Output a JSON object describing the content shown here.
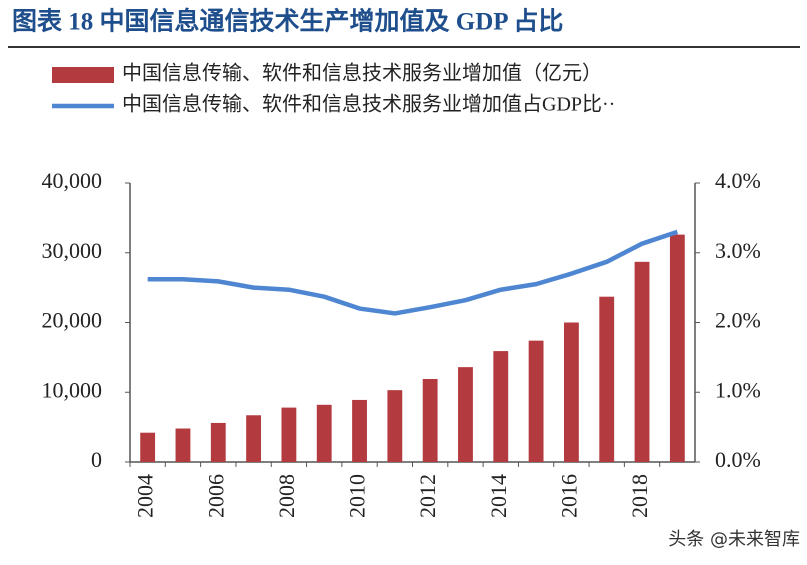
{
  "chart_data": {
    "type": "bar",
    "title": "图表 18   中国信息通信技术生产增加值及 GDP 占比",
    "watermark": "头条 @未来智库",
    "categories": [
      "2004",
      null,
      "2006",
      null,
      "2008",
      null,
      "2010",
      null,
      "2012",
      null,
      "2014",
      null,
      "2016",
      null,
      "2018",
      null
    ],
    "series": [
      {
        "name": "中国信息传输、软件和信息技术服务业增加值（亿元）",
        "type": "bar",
        "color": "#b33a3f",
        "values": [
          4200,
          4800,
          5600,
          6700,
          7800,
          8200,
          8900,
          10300,
          11900,
          13600,
          15900,
          17400,
          20000,
          23700,
          28700,
          32600
        ]
      },
      {
        "name": "中国信息传输、软件和信息技术服务业增加值占GDP比··",
        "type": "line",
        "axis": "y2",
        "color": "#4f86d2",
        "values": [
          2.62,
          2.62,
          2.59,
          2.5,
          2.47,
          2.37,
          2.2,
          2.13,
          2.22,
          2.32,
          2.47,
          2.55,
          2.7,
          2.87,
          3.13,
          3.3
        ]
      }
    ],
    "ylim": [
      0,
      40000
    ],
    "yticks": [
      0,
      {
        "value": 10000,
        "label": "10,000"
      },
      {
        "value": 20000,
        "label": "20,000"
      },
      {
        "value": 30000,
        "label": "30,000"
      },
      {
        "value": 40000,
        "label": "40,000"
      }
    ],
    "y2lim": [
      0,
      4
    ],
    "y2ticks": [
      {
        "value": 0,
        "label": "0.0%"
      },
      {
        "value": 1,
        "label": "1.0%"
      },
      {
        "value": 2,
        "label": "2.0%"
      },
      {
        "value": 3,
        "label": "3.0%"
      },
      {
        "value": 4,
        "label": "4.0%"
      }
    ],
    "grid": false
  }
}
